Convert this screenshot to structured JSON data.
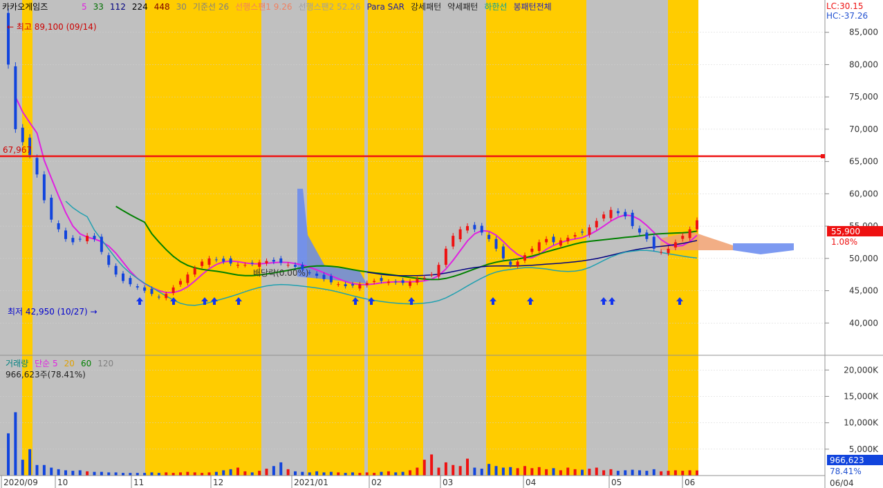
{
  "legend": {
    "title": "카카오게임즈",
    "items": [
      {
        "label": "5",
        "color": "#e020e0"
      },
      {
        "label": "33",
        "color": "#007000"
      },
      {
        "label": "112",
        "color": "#000080"
      },
      {
        "label": "224",
        "color": "#000000"
      },
      {
        "label": "448",
        "color": "#800000"
      },
      {
        "label": "30",
        "color": "#808080"
      },
      {
        "label": "기준선 26",
        "color": "#808080"
      },
      {
        "label": "선행스팬1 9.26",
        "color": "#f08060"
      },
      {
        "label": "선행스팬2 52.26",
        "color": "#a0a0a0"
      },
      {
        "label": "Para SAR",
        "color": "#2020a0"
      },
      {
        "label": "강세패턴",
        "color": "#202020"
      },
      {
        "label": "약세패턴",
        "color": "#202020"
      },
      {
        "label": "하한선",
        "color": "#00a0a0"
      },
      {
        "label": "봉패턴전체",
        "color": "#2020c0"
      }
    ]
  },
  "lc_label": "LC:30.15",
  "hc_label": "HC:-37.26",
  "annotations": {
    "high": "최고 89,100 (09/14)",
    "low": "최저 42,950 (10/27)",
    "dividend": "배당락(0.00%)",
    "hline": "67,967",
    "current_price": "55,900",
    "change_pct": "1.08%"
  },
  "volume_legend": {
    "items": [
      {
        "label": "거래량",
        "color": "#008080"
      },
      {
        "label": "단순 5",
        "color": "#e020e0"
      },
      {
        "label": "20",
        "color": "#e0a000"
      },
      {
        "label": "60",
        "color": "#008000"
      },
      {
        "label": "120",
        "color": "#808080"
      }
    ],
    "current": "966,623주(78.41%)",
    "current_box": "966,623",
    "current_pct": "78.41%"
  },
  "colors": {
    "up": "#ee1111",
    "down": "#1144dd",
    "bg_gray": "#c0c0c0",
    "bg_yellow": "#ffcc00",
    "ma5": "#e020e0",
    "ma33": "#008000",
    "ma112": "#000080",
    "lower_band": "#20a0b0",
    "hline": "#ee1111"
  },
  "chart_data": {
    "type": "candlestick",
    "price_axis": {
      "ticks": [
        "40,000",
        "45,000",
        "50,000",
        "55,000",
        "60,000",
        "65,000",
        "70,000",
        "75,000",
        "80,000",
        "85,000"
      ],
      "range": [
        35000,
        90000
      ]
    },
    "volume_axis": {
      "ticks": [
        "5,000K",
        "10,000K",
        "15,000K",
        "20,000K"
      ],
      "range": [
        0,
        22000000
      ]
    },
    "date_ticks": [
      "2020/09",
      "10",
      "11",
      "12",
      "2021/01",
      "02",
      "03",
      "04",
      "05",
      "06"
    ],
    "right_date_label": "06/04",
    "hline_value": 67967,
    "last_close": 55900,
    "closes": [
      80000,
      70000,
      68000,
      66000,
      63000,
      59000,
      56000,
      54500,
      53000,
      52500,
      53000,
      53500,
      53000,
      51000,
      49000,
      47500,
      46500,
      46000,
      45500,
      45000,
      44500,
      44000,
      44500,
      45500,
      46500,
      47500,
      48500,
      49500,
      50000,
      49800,
      49500,
      49200,
      49000,
      49000,
      49200,
      49400,
      49600,
      49500,
      49300,
      49000,
      48700,
      48300,
      47800,
      47300,
      46800,
      46300,
      46000,
      45700,
      45800,
      46000,
      46200,
      46500,
      46500,
      46400,
      46300,
      46200,
      46400,
      46800,
      47000,
      47500,
      49000,
      51500,
      53500,
      54500,
      55000,
      54500,
      54000,
      53000,
      51500,
      50000,
      49000,
      49500,
      50500,
      51500,
      52500,
      53000,
      52500,
      52800,
      53200,
      53600,
      54000,
      54800,
      55800,
      56800,
      57500,
      57000,
      56500,
      55000,
      54000,
      53000,
      51500,
      51000,
      51500,
      52500,
      53500,
      54500,
      55900
    ],
    "volumes": [
      8,
      12,
      3,
      5,
      2,
      2,
      1.5,
      1.2,
      1,
      0.9,
      1,
      0.8,
      0.7,
      0.7,
      0.6,
      0.6,
      0.5,
      0.5,
      0.5,
      0.5,
      0.6,
      0.5,
      0.6,
      0.5,
      0.6,
      0.7,
      0.6,
      0.5,
      0.6,
      0.7,
      1,
      1.2,
      1.5,
      0.8,
      0.6,
      0.9,
      1.3,
      1.8,
      2.5,
      1.2,
      0.8,
      0.7,
      0.6,
      0.8,
      0.6,
      0.7,
      0.6,
      0.5,
      0.6,
      0.5,
      0.6,
      0.5,
      0.7,
      0.8,
      0.6,
      0.7,
      1,
      1.5,
      3,
      4,
      1.5,
      2.5,
      2,
      1.8,
      3.2,
      1.5,
      1.3,
      2.2,
      1.8,
      1.5,
      1.6,
      1.4,
      1.8,
      1.4,
      1.6,
      1.2,
      1.4,
      1,
      1.5,
      1.2,
      1.1,
      1.3,
      1.5,
      1,
      1.2,
      0.9,
      1,
      1.1,
      1,
      0.9,
      1.2,
      0.8,
      0.9,
      1,
      0.9,
      1,
      0.97
    ]
  }
}
